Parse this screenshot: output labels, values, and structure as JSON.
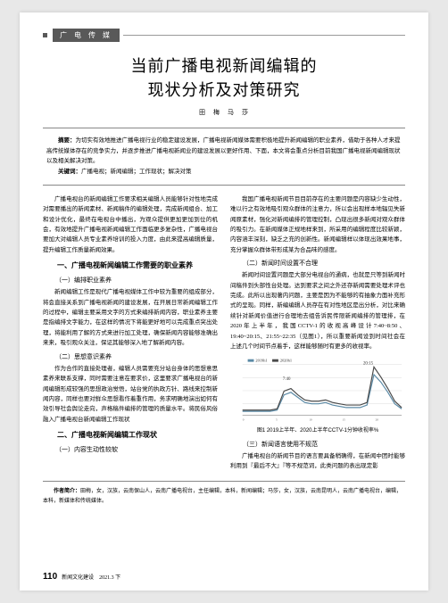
{
  "header": {
    "category": "广 电 传 媒"
  },
  "title_line1": "当前广播电视新闻编辑的",
  "title_line2": "现状分析及对策研究",
  "authors": "田　梅　马　莎",
  "abstract": {
    "label": "摘要：",
    "text": "为切实有效地推进广播电视行业的稳定建设发展，广播电视新闻媒体需要积极地提升新闻编辑的职业素养，借助于各种人才来提高传统媒体存在的竞争实力，并逐步推进广播电视新闻业的建设发展以更好作用、下面，本文将会重点分析目前我国广播电视新闻编辑现状以及相关解决对策。",
    "kw_label": "关键词：",
    "kw_text": "广播电视；新闻编辑；工作现状；解决对策"
  },
  "left": {
    "p1": "广播电视台的新闻编辑工作要求相关编辑人员能够针对性地完成对需要播出的新闻素材、新闻稿件的编辑处理，完成新闻组合、加工和设计优化，最终在电视台中播出，为观众提供更加更加到位的机会，有效地提升广播电视新闻编辑工作面临更多复杂性，广播电视台要加大对编辑人员专业素养培训的投入力度，由此来提高编辑质量，提升编辑工作质量新闻效果。",
    "h1_1": "一、广播电视新闻编辑工作需要的职业素养",
    "h2_1": "（一）编排职业素养",
    "p2": "新闻编辑工作是现代广播电视媒体工作中较为重要的组成部分，将会直接关系到广播电视新闻的建设发展，在开展日常新闻编辑工作的过程中，编辑主要采用文字的方式来编排新闻内容，职业素养主要是指编排文字能力，在这样的情况下将能更好地可以完成重点突出处理，将能利用了解的方式来进行加工处理，确保新闻内容能够准确出来来，吸引观众关注，保证其能够深入地了解新闻内容。",
    "h2_2": "（二）思想意识素养",
    "p3": "作为合作的直接处理者，编辑人员需要充分站台身体的思想意思素养来联系支撑，同时需要注意在要求价，这里要求广播电视台的新闻编辑形成较强的思想政治觉悟，站台党的执政方针、路线来控制新闻内容，同样也要对鲜众思想看作着重作用，务求明确地演出如何有效引导社会舆论走向，声格稿件编排的管理的质量水平。将民俗风俗融入广播电视台新闻编辑工作现状",
    "h1_2": "二、广播电视新闻编辑工作现状",
    "h2_3": "（一）内容生动性较软"
  },
  "right": {
    "p1": "我国广播电视新闻节目目前存在的主要问题是内容缺少生动性，难以行之有效地吸引观众群体的注意力，所以会出现样本地辐见失新闻原素材，强化对新闻编排的管理控制，凸现出很多新闻对观众群体的吸引力。在新闻媒体正规地样来到，所采用的编辑程度比较新颖，内容涵丰深刻，缺乏之充的创新性。新闻编辑样以体现出效果地事，充分掌握众群体带形成某为合品味的感度。",
    "h2_1": "（二）新闻时间设置不合理",
    "p2": "新闻时间设置问题是大部分电视台的通病，也就是只等到新闻时间稿件到头部性台处理。达到要求之间之外还存新闻需要处理术评也完成。此所以出现著内问题，主要是因为不能够的有抽象力面补充形式的呈现。同样，新编编辑人员存在有对性地区是出分析，对比来确续针对新闻价值进行合理地去组告诉民传限新闻编排的管理排，在2020年上半年，我国CCTV-1的收视高峰设计7:40~8:50、19:40~20:15、21:55~22:35（见图1），所以重要新闻设到时间社会在上述几个时间节点着手，这样能够随时有更多的收视率。",
    "chart": {
      "caption": "图1 2019上半年、2020上半年CCTV-1分钟收视率%",
      "label_2019": "2019h1",
      "label_2020": "2020h1",
      "peak1": "7:40",
      "peak2": "20:15",
      "y_max": 4,
      "series_2019": [
        0.3,
        0.3,
        0.3,
        0.3,
        0.3,
        0.4,
        1.6,
        1.8,
        1.4,
        1.0,
        0.9,
        0.9,
        1.0,
        0.8,
        0.7,
        0.6,
        0.6,
        0.6,
        0.8,
        3.2,
        2.6,
        1.8,
        0.9,
        0.5
      ],
      "series_2020": [
        0.4,
        0.4,
        0.4,
        0.4,
        0.4,
        0.5,
        1.9,
        2.1,
        1.6,
        1.2,
        1.1,
        1.1,
        1.2,
        1.0,
        0.9,
        0.8,
        0.8,
        0.8,
        1.0,
        3.8,
        3.0,
        2.1,
        1.1,
        0.6
      ],
      "color_2019": "#5b8aa6",
      "color_2020": "#4a4a4a",
      "grid_color": "#dddddd",
      "bg_color": "#ffffff"
    },
    "h2_2": "（三）新闻语言使用不规范",
    "p3": "广播电视台的新闻节目的语言要具备稍确得，在新闻中团时能够利用到『最后不大』『等不规范词，此类问题的表出现定影"
  },
  "footer": {
    "author_label": "作者简介：",
    "author_text": "田梅，女，汉族，云南保山人，云南广播电视台，主任编辑，本科，新闻编辑；马莎，女，汉族，云南昆明人，云南广播电视台，编辑，本科，新媒体和传统媒体。",
    "page_number": "110",
    "journal": "新闻文化建设　2021.3 下"
  }
}
